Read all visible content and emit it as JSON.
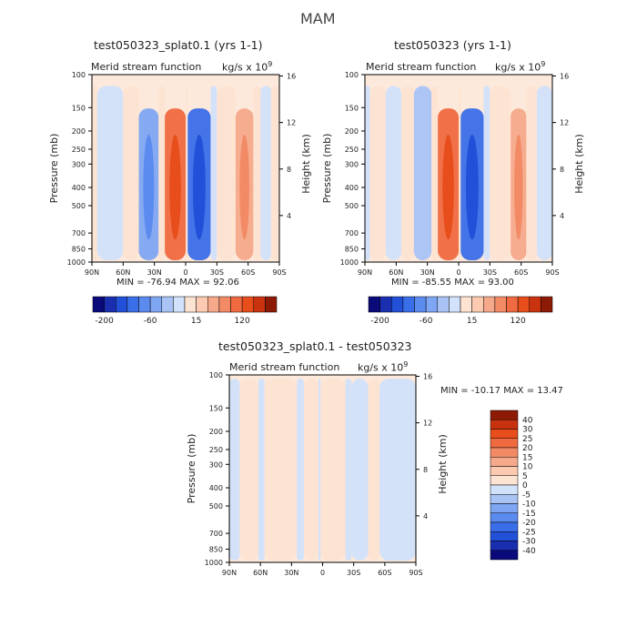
{
  "season": "MAM",
  "chart_data": [
    {
      "type": "heatmap",
      "title": "test050323_splat0.1 (yrs 1-1)",
      "subtitle_left": "Merid stream function",
      "units": "kg/s x 10",
      "units_exp": "9",
      "ylabel": "Pressure (mb)",
      "y2label": "Height (km)",
      "x_ticks": [
        "90N",
        "60N",
        "30N",
        "0",
        "30S",
        "60S",
        "90S"
      ],
      "y_ticks": [
        "100",
        "150",
        "200",
        "250",
        "300",
        "400",
        "500",
        "700",
        "850",
        "1000"
      ],
      "y2_ticks": [
        "16",
        "12",
        "8",
        "4"
      ],
      "stats": "MIN = -76.94   MAX =  92.06",
      "colorbar_labels": [
        "-200",
        "-60",
        "15",
        "120"
      ],
      "bands": [
        {
          "lat_min": 85,
          "lat_max": 90,
          "value": 5
        },
        {
          "lat_min": 60,
          "lat_max": 85,
          "value": -5
        },
        {
          "lat_min": 45,
          "lat_max": 60,
          "value": 5
        },
        {
          "lat_min": 26,
          "lat_max": 45,
          "value": -40
        },
        {
          "lat_min": 20,
          "lat_max": 26,
          "value": 5
        },
        {
          "lat_min": 0,
          "lat_max": 20,
          "value": 60
        },
        {
          "lat_min": -2,
          "lat_max": 0,
          "value": 5
        },
        {
          "lat_min": -24,
          "lat_max": -2,
          "value": -70
        },
        {
          "lat_min": -30,
          "lat_max": -24,
          "value": -5
        },
        {
          "lat_min": -48,
          "lat_max": -30,
          "value": 5
        },
        {
          "lat_min": -65,
          "lat_max": -48,
          "value": 40
        },
        {
          "lat_min": -72,
          "lat_max": -65,
          "value": 5
        },
        {
          "lat_min": -82,
          "lat_max": -72,
          "value": -5
        },
        {
          "lat_min": -90,
          "lat_max": -82,
          "value": 5
        }
      ]
    },
    {
      "type": "heatmap",
      "title": "test050323 (yrs 1-1)",
      "subtitle_left": "Merid stream function",
      "units": "kg/s x 10",
      "units_exp": "9",
      "ylabel": "Pressure (mb)",
      "y2label": "Height (km)",
      "x_ticks": [
        "90N",
        "60N",
        "30N",
        "0",
        "30S",
        "60S",
        "90S"
      ],
      "y_ticks": [
        "100",
        "150",
        "200",
        "250",
        "300",
        "400",
        "500",
        "700",
        "850",
        "1000"
      ],
      "y2_ticks": [
        "16",
        "12",
        "8",
        "4"
      ],
      "stats": "MIN = -85.55   MAX =  93.00",
      "colorbar_labels": [
        "-200",
        "-60",
        "15",
        "120"
      ],
      "bands": [
        {
          "lat_min": 85,
          "lat_max": 90,
          "value": -5
        },
        {
          "lat_min": 70,
          "lat_max": 85,
          "value": 5
        },
        {
          "lat_min": 55,
          "lat_max": 70,
          "value": -5
        },
        {
          "lat_min": 43,
          "lat_max": 55,
          "value": 5
        },
        {
          "lat_min": 26,
          "lat_max": 43,
          "value": -20
        },
        {
          "lat_min": 20,
          "lat_max": 26,
          "value": 5
        },
        {
          "lat_min": 0,
          "lat_max": 20,
          "value": 60
        },
        {
          "lat_min": -2,
          "lat_max": 0,
          "value": 5
        },
        {
          "lat_min": -24,
          "lat_max": -2,
          "value": -70
        },
        {
          "lat_min": -30,
          "lat_max": -24,
          "value": -5
        },
        {
          "lat_min": -50,
          "lat_max": -30,
          "value": 5
        },
        {
          "lat_min": -65,
          "lat_max": -50,
          "value": 40
        },
        {
          "lat_min": -75,
          "lat_max": -65,
          "value": 5
        },
        {
          "lat_min": -90,
          "lat_max": -75,
          "value": -5
        }
      ]
    },
    {
      "type": "heatmap",
      "title": "test050323_splat0.1 - test050323",
      "subtitle_left": "Merid stream function",
      "units": "kg/s x 10",
      "units_exp": "9",
      "ylabel": "Pressure (mb)",
      "y2label": "Height (km)",
      "x_ticks": [
        "90N",
        "60N",
        "30N",
        "0",
        "30S",
        "60S",
        "90S"
      ],
      "y_ticks": [
        "100",
        "150",
        "200",
        "250",
        "300",
        "400",
        "500",
        "700",
        "850",
        "1000"
      ],
      "y2_ticks": [
        "16",
        "12",
        "8",
        "4"
      ],
      "stats": "MIN = -10.17   MAX =  13.47",
      "colorbar_labels": [
        "40",
        "30",
        "25",
        "20",
        "15",
        "10",
        "5",
        "0",
        "-5",
        "-10",
        "-15",
        "-20",
        "-25",
        "-30",
        "-40"
      ],
      "bands": [
        {
          "lat_min": 80,
          "lat_max": 90,
          "value": -2
        },
        {
          "lat_min": 62,
          "lat_max": 80,
          "value": 2
        },
        {
          "lat_min": 56,
          "lat_max": 62,
          "value": -2
        },
        {
          "lat_min": 25,
          "lat_max": 56,
          "value": 2
        },
        {
          "lat_min": 18,
          "lat_max": 25,
          "value": -2
        },
        {
          "lat_min": 4,
          "lat_max": 18,
          "value": 2
        },
        {
          "lat_min": 2,
          "lat_max": 4,
          "value": -2
        },
        {
          "lat_min": -22,
          "lat_max": 2,
          "value": 2
        },
        {
          "lat_min": -28,
          "lat_max": -22,
          "value": -2
        },
        {
          "lat_min": -44,
          "lat_max": -28,
          "value": -2
        },
        {
          "lat_min": -55,
          "lat_max": -44,
          "value": 2
        },
        {
          "lat_min": -90,
          "lat_max": -55,
          "value": -2
        }
      ]
    }
  ],
  "colors": {
    "blues": [
      "#0a0a7a",
      "#1a2fb0",
      "#2250d8",
      "#3a6ee8",
      "#5b8bef",
      "#7fa6f3",
      "#a9c3f5",
      "#d2e2fb"
    ],
    "reds": [
      "#fde3d2",
      "#fbcab0",
      "#f6a98a",
      "#f28a66",
      "#ef6a40",
      "#e84d1c",
      "#c8320e",
      "#8c1a05"
    ],
    "panel_bg": "#fde9db"
  }
}
